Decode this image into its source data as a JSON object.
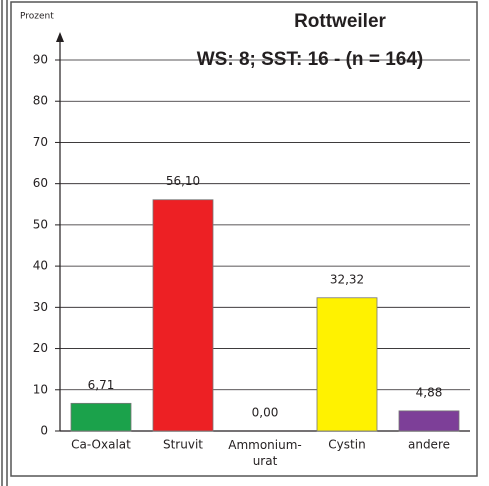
{
  "chart_data": {
    "type": "bar",
    "title": "Rottweiler",
    "subtitle": "WS: 8; SST: 16 - (n = 164)",
    "y_label": "Prozent",
    "categories": [
      "Ca-Oxalat",
      "Struvit",
      "Ammonium-\nurat",
      "Cystin",
      "andere"
    ],
    "values": [
      6.71,
      56.1,
      0.0,
      32.32,
      4.88
    ],
    "value_labels": [
      "6,71",
      "56,10",
      "0,00",
      "32,32",
      "4,88"
    ],
    "colors": [
      "#1ba24b",
      "#ed2024",
      "#fff200",
      "#fff200",
      "#7d3f98"
    ],
    "ylim": [
      0,
      90
    ],
    "yticks": [
      0,
      10,
      20,
      30,
      40,
      50,
      60,
      70,
      80,
      90
    ],
    "grid": true
  }
}
